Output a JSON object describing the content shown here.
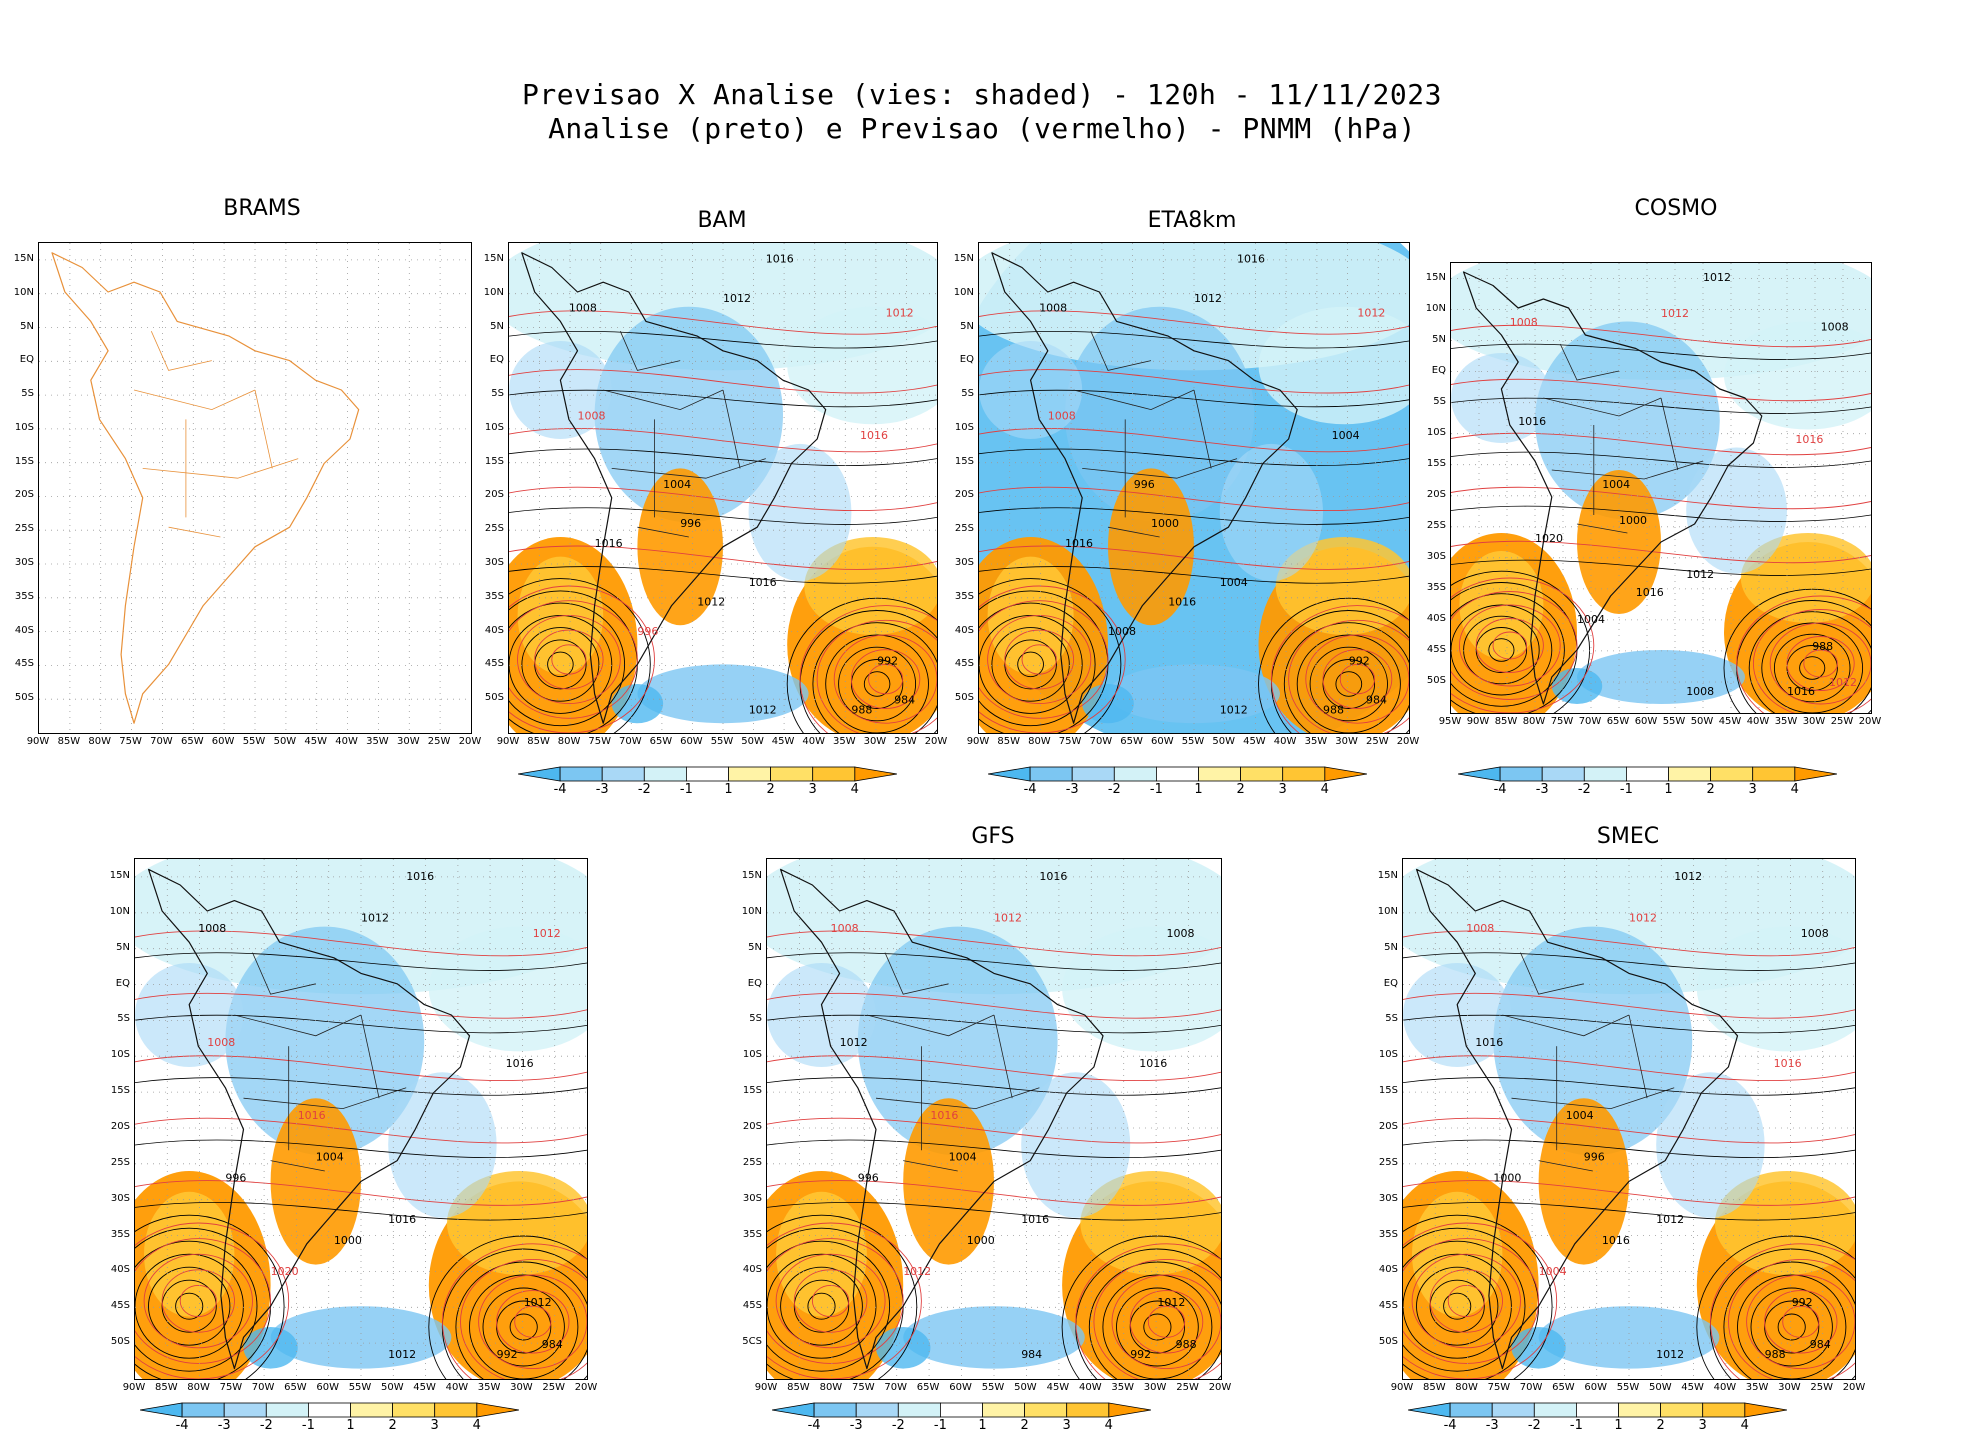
{
  "title": {
    "line1": "Previsao X Analise (vies: shaded) - 120h - 11/11/2023",
    "line2": "Analise (preto) e Previsao (vermelho) - PNMM (hPa)"
  },
  "lat_labels": [
    "15N",
    "10N",
    "5N",
    "EQ",
    "5S",
    "10S",
    "15S",
    "20S",
    "25S",
    "30S",
    "35S",
    "40S",
    "45S",
    "50S"
  ],
  "lon_labels": [
    "90W",
    "85W",
    "80W",
    "75W",
    "70W",
    "65W",
    "60W",
    "55W",
    "50W",
    "45W",
    "40W",
    "35W",
    "30W",
    "25W",
    "20W"
  ],
  "lon_labels_cosmo": [
    "95W",
    "90W",
    "85W",
    "80W",
    "75W",
    "70W",
    "65W",
    "60W",
    "55W",
    "50W",
    "45W",
    "40W",
    "35W",
    "30W",
    "25W",
    "20W"
  ],
  "lat_labels_gfs": [
    "15N",
    "10N",
    "5N",
    "EQ",
    "5S",
    "10S",
    "15S",
    "20S",
    "25S",
    "30S",
    "35S",
    "40S",
    "45S",
    "5CS"
  ],
  "colorbar": {
    "labels": [
      "-4",
      "-3",
      "-2",
      "-1",
      "1",
      "2",
      "3",
      "4"
    ],
    "colors": [
      "#4db8f0",
      "#7cc6f2",
      "#a9d8f6",
      "#d3f2f7",
      "#ffffff",
      "#fff3a6",
      "#ffe066",
      "#ffc533",
      "#ff9a00"
    ]
  },
  "colors": {
    "land_outline": "#e8913a",
    "analysis": "#000000",
    "forecast": "#e04040",
    "grid": "#9a9a9a"
  },
  "panels": [
    {
      "id": "brams",
      "name": "BRAMS",
      "colorbar": false,
      "labels": []
    },
    {
      "id": "bam",
      "name": "BAM",
      "colorbar": true,
      "labels": [
        {
          "t": "1016",
          "c": "k"
        },
        {
          "t": "1012",
          "c": "k"
        },
        {
          "t": "1012",
          "c": "r"
        },
        {
          "t": "1008",
          "c": "k"
        },
        {
          "t": "1008",
          "c": "r"
        },
        {
          "t": "1016",
          "c": "r"
        },
        {
          "t": "1004",
          "c": "k"
        },
        {
          "t": "996",
          "c": "k"
        },
        {
          "t": "1016",
          "c": "k"
        },
        {
          "t": "1012",
          "c": "k"
        },
        {
          "t": "1016",
          "c": "k"
        },
        {
          "t": "992",
          "c": "k"
        },
        {
          "t": "988",
          "c": "k"
        },
        {
          "t": "984",
          "c": "k"
        },
        {
          "t": "1012",
          "c": "k"
        },
        {
          "t": "996",
          "c": "r"
        }
      ]
    },
    {
      "id": "eta8km",
      "name": "ETA8km",
      "colorbar": true,
      "labels": [
        {
          "t": "1016",
          "c": "k"
        },
        {
          "t": "1012",
          "c": "k"
        },
        {
          "t": "1012",
          "c": "r"
        },
        {
          "t": "1008",
          "c": "k"
        },
        {
          "t": "1008",
          "c": "r"
        },
        {
          "t": "1004",
          "c": "k"
        },
        {
          "t": "996",
          "c": "k"
        },
        {
          "t": "1000",
          "c": "k"
        },
        {
          "t": "1016",
          "c": "k"
        },
        {
          "t": "1016",
          "c": "k"
        },
        {
          "t": "1004",
          "c": "k"
        },
        {
          "t": "992",
          "c": "k"
        },
        {
          "t": "988",
          "c": "k"
        },
        {
          "t": "984",
          "c": "k"
        },
        {
          "t": "1012",
          "c": "k"
        },
        {
          "t": "1008",
          "c": "k"
        }
      ]
    },
    {
      "id": "cosmo",
      "name": "COSMO",
      "colorbar": true,
      "labels": [
        {
          "t": "1012",
          "c": "k"
        },
        {
          "t": "1012",
          "c": "r"
        },
        {
          "t": "1008",
          "c": "k"
        },
        {
          "t": "1008",
          "c": "r"
        },
        {
          "t": "1016",
          "c": "k"
        },
        {
          "t": "1016",
          "c": "r"
        },
        {
          "t": "1004",
          "c": "k"
        },
        {
          "t": "1000",
          "c": "k"
        },
        {
          "t": "1020",
          "c": "k"
        },
        {
          "t": "1016",
          "c": "k"
        },
        {
          "t": "1012",
          "c": "k"
        },
        {
          "t": "988",
          "c": "k"
        },
        {
          "t": "1016",
          "c": "k"
        },
        {
          "t": "1012",
          "c": "r"
        },
        {
          "t": "1008",
          "c": "k"
        },
        {
          "t": "1004",
          "c": "k"
        }
      ]
    },
    {
      "id": "bottom1",
      "name": "",
      "colorbar": true,
      "labels": [
        {
          "t": "1016",
          "c": "k"
        },
        {
          "t": "1012",
          "c": "k"
        },
        {
          "t": "1012",
          "c": "r"
        },
        {
          "t": "1008",
          "c": "k"
        },
        {
          "t": "1008",
          "c": "r"
        },
        {
          "t": "1016",
          "c": "k"
        },
        {
          "t": "1016",
          "c": "r"
        },
        {
          "t": "1004",
          "c": "k"
        },
        {
          "t": "996",
          "c": "k"
        },
        {
          "t": "1000",
          "c": "k"
        },
        {
          "t": "1016",
          "c": "k"
        },
        {
          "t": "1012",
          "c": "k"
        },
        {
          "t": "992",
          "c": "k"
        },
        {
          "t": "984",
          "c": "k"
        },
        {
          "t": "1012",
          "c": "k"
        },
        {
          "t": "1020",
          "c": "r"
        }
      ]
    },
    {
      "id": "gfs",
      "name": "GFS",
      "colorbar": true,
      "labels": [
        {
          "t": "1016",
          "c": "k"
        },
        {
          "t": "1012",
          "c": "r"
        },
        {
          "t": "1008",
          "c": "k"
        },
        {
          "t": "1008",
          "c": "r"
        },
        {
          "t": "1012",
          "c": "k"
        },
        {
          "t": "1016",
          "c": "k"
        },
        {
          "t": "1016",
          "c": "r"
        },
        {
          "t": "1004",
          "c": "k"
        },
        {
          "t": "996",
          "c": "k"
        },
        {
          "t": "1000",
          "c": "k"
        },
        {
          "t": "1016",
          "c": "k"
        },
        {
          "t": "1012",
          "c": "k"
        },
        {
          "t": "992",
          "c": "k"
        },
        {
          "t": "988",
          "c": "k"
        },
        {
          "t": "984",
          "c": "k"
        },
        {
          "t": "1012",
          "c": "r"
        }
      ]
    },
    {
      "id": "smec",
      "name": "SMEC",
      "colorbar": true,
      "labels": [
        {
          "t": "1012",
          "c": "k"
        },
        {
          "t": "1012",
          "c": "r"
        },
        {
          "t": "1008",
          "c": "k"
        },
        {
          "t": "1008",
          "c": "r"
        },
        {
          "t": "1016",
          "c": "k"
        },
        {
          "t": "1016",
          "c": "r"
        },
        {
          "t": "1004",
          "c": "k"
        },
        {
          "t": "996",
          "c": "k"
        },
        {
          "t": "1000",
          "c": "k"
        },
        {
          "t": "1016",
          "c": "k"
        },
        {
          "t": "1012",
          "c": "k"
        },
        {
          "t": "992",
          "c": "k"
        },
        {
          "t": "988",
          "c": "k"
        },
        {
          "t": "984",
          "c": "k"
        },
        {
          "t": "1012",
          "c": "k"
        },
        {
          "t": "1004",
          "c": "r"
        }
      ]
    }
  ]
}
